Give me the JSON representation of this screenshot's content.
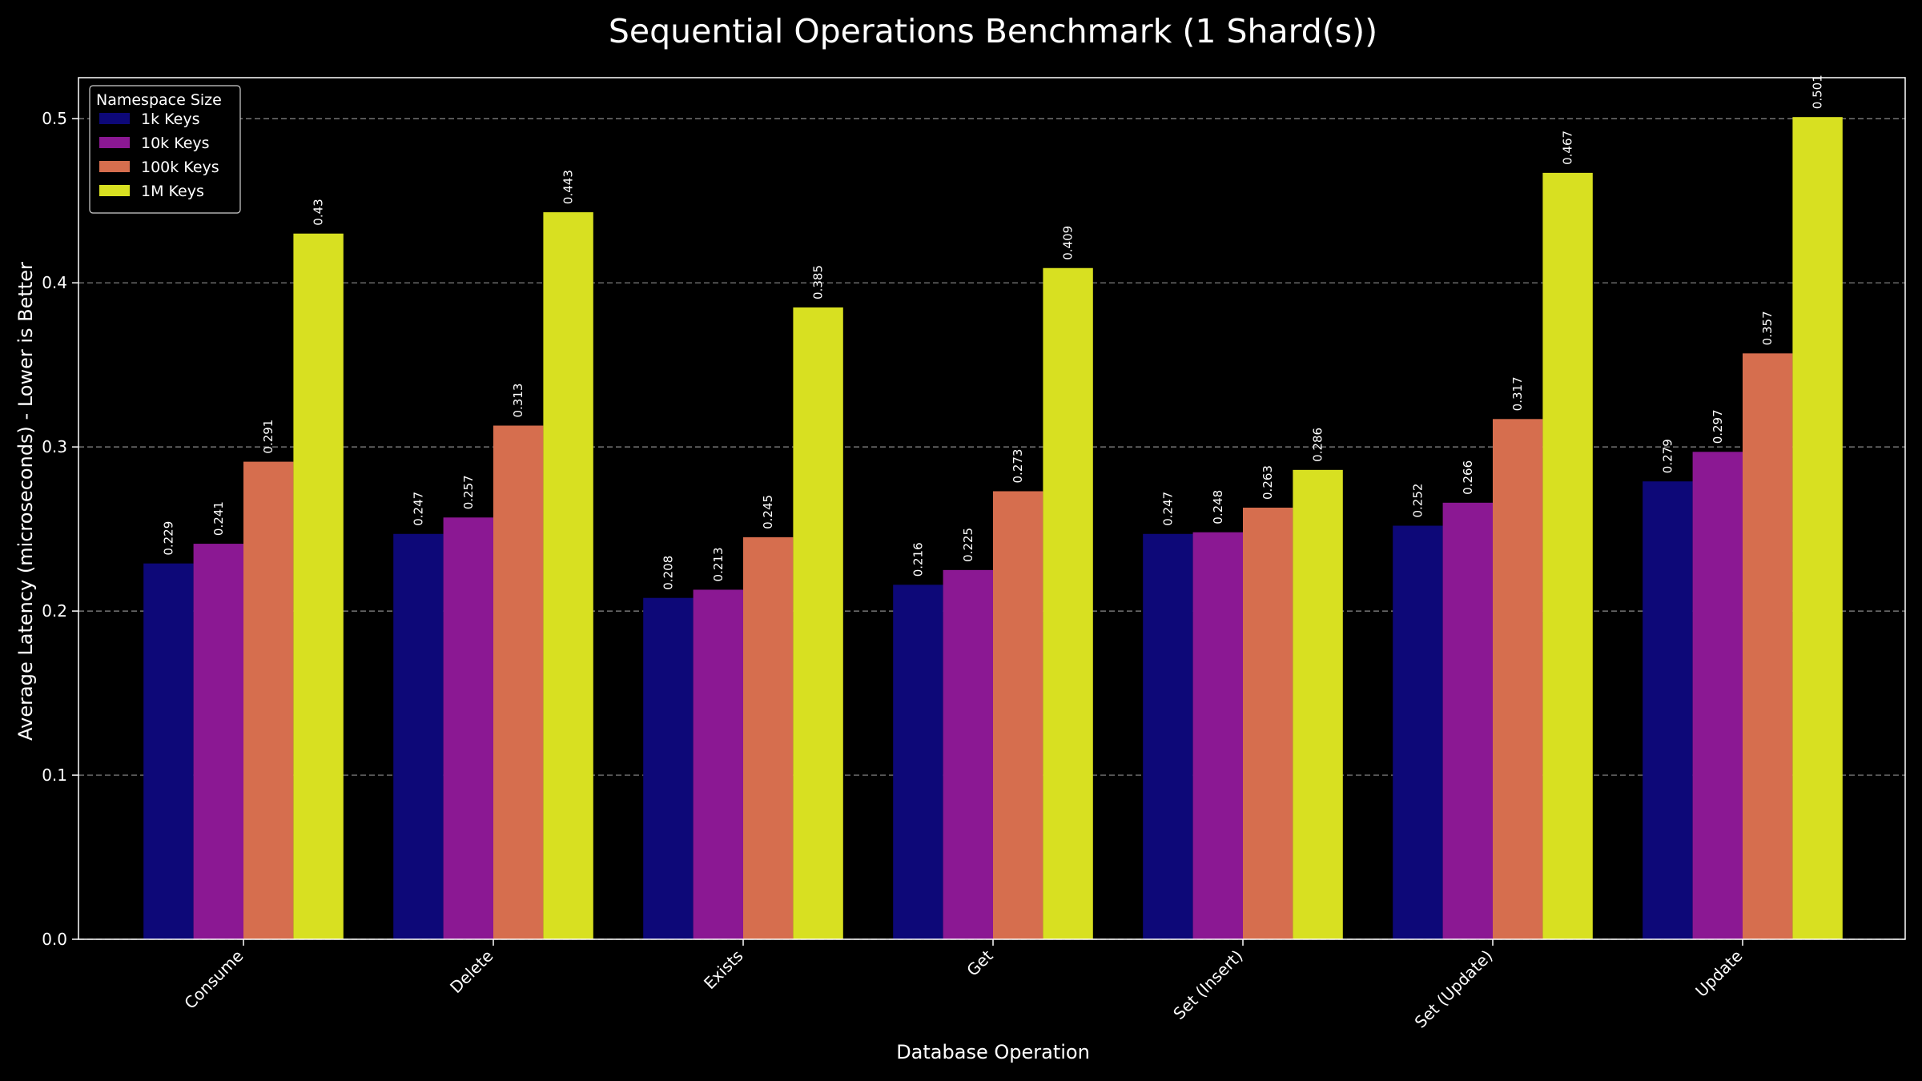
{
  "chart_data": {
    "type": "bar",
    "title": "Sequential Operations Benchmark (1 Shard(s))",
    "xlabel": "Database Operation",
    "ylabel": "Average Latency (microseconds) - Lower is Better",
    "categories": [
      "Consume",
      "Delete",
      "Exists",
      "Get",
      "Set (Insert)",
      "Set (Update)",
      "Update"
    ],
    "ylim": [
      0,
      0.525
    ],
    "yticks": [
      0.0,
      0.1,
      0.2,
      0.3,
      0.4,
      0.5
    ],
    "ytick_labels": [
      "0.0",
      "0.1",
      "0.2",
      "0.3",
      "0.4",
      "0.5"
    ],
    "grid": "horizontal dashed",
    "legend": {
      "title": "Namespace Size",
      "placement": "top-left"
    },
    "series": [
      {
        "name": "1k Keys",
        "color": "#0d0878",
        "values": [
          0.229,
          0.247,
          0.208,
          0.216,
          0.247,
          0.252,
          0.279
        ],
        "labels": [
          "0.229",
          "0.247",
          "0.208",
          "0.216",
          "0.247",
          "0.252",
          "0.279"
        ]
      },
      {
        "name": "10k Keys",
        "color": "#8b1893",
        "values": [
          0.241,
          0.257,
          0.213,
          0.225,
          0.248,
          0.266,
          0.297
        ],
        "labels": [
          "0.241",
          "0.257",
          "0.213",
          "0.225",
          "0.248",
          "0.266",
          "0.297"
        ]
      },
      {
        "name": "100k Keys",
        "color": "#d66e4e",
        "values": [
          0.291,
          0.313,
          0.245,
          0.273,
          0.263,
          0.317,
          0.357
        ],
        "labels": [
          "0.291",
          "0.313",
          "0.245",
          "0.273",
          "0.263",
          "0.317",
          "0.357"
        ]
      },
      {
        "name": "1M Keys",
        "color": "#d8e021",
        "values": [
          0.43,
          0.443,
          0.385,
          0.409,
          0.286,
          0.467,
          0.501
        ],
        "labels": [
          "0.43",
          "0.443",
          "0.385",
          "0.409",
          "0.286",
          "0.467",
          "0.501"
        ]
      }
    ]
  }
}
